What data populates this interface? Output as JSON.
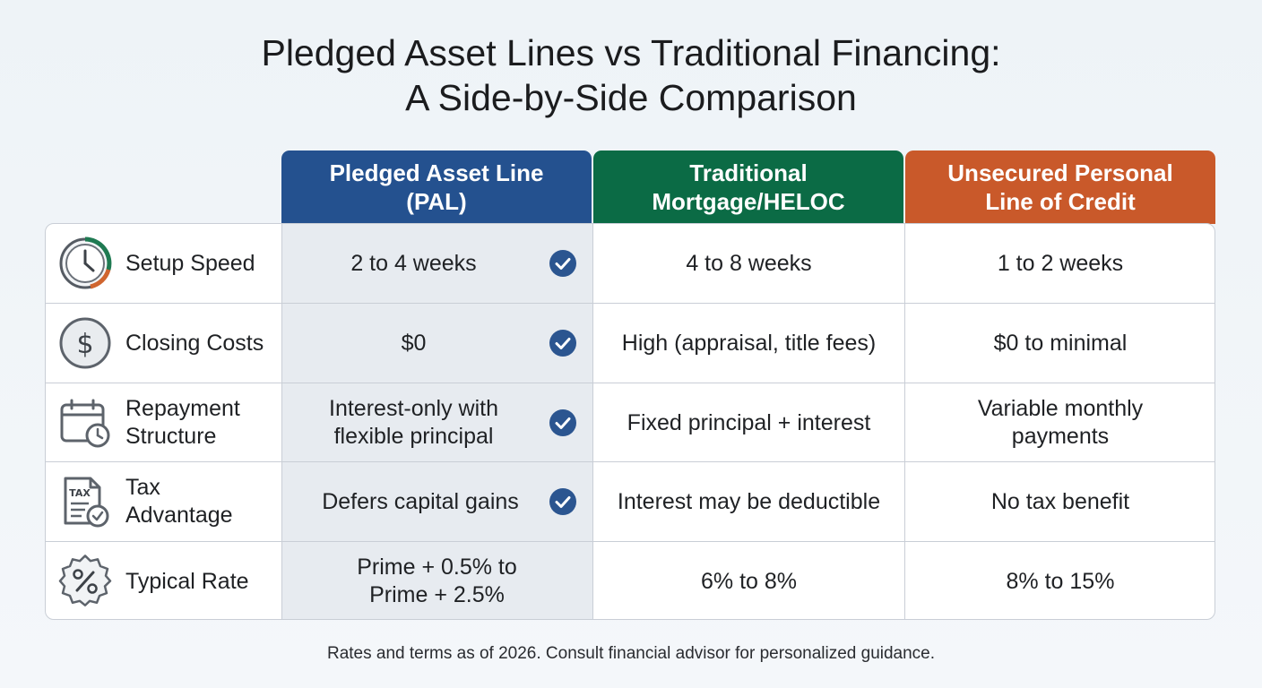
{
  "title": {
    "line1": "Pledged Asset Lines vs Traditional Financing:",
    "line2": "A Side-by-Side Comparison"
  },
  "columns": {
    "pal": {
      "line1": "Pledged Asset Line",
      "line2": "(PAL)"
    },
    "mortgage": {
      "line1": "Traditional",
      "line2": "Mortgage/HELOC"
    },
    "unsecured": {
      "line1": "Unsecured Personal",
      "line2": "Line of Credit"
    }
  },
  "rows": [
    {
      "icon": "clock-icon",
      "label": [
        "Setup Speed"
      ],
      "pal": [
        "2 to 4 weeks"
      ],
      "pal_check": true,
      "mortgage": [
        "4 to 8 weeks"
      ],
      "unsecured": [
        "1 to 2 weeks"
      ]
    },
    {
      "icon": "dollar-icon",
      "label": [
        "Closing Costs"
      ],
      "pal": [
        "$0"
      ],
      "pal_check": true,
      "mortgage": [
        "High (appraisal, title fees)"
      ],
      "unsecured": [
        "$0 to minimal"
      ]
    },
    {
      "icon": "calendar-clock-icon",
      "label": [
        "Repayment",
        "Structure"
      ],
      "pal": [
        "Interest-only with",
        "flexible principal"
      ],
      "pal_check": true,
      "mortgage": [
        "Fixed principal + interest"
      ],
      "unsecured": [
        "Variable monthly",
        "payments"
      ]
    },
    {
      "icon": "tax-document-icon",
      "label": [
        "Tax",
        "Advantage"
      ],
      "pal": [
        "Defers capital gains"
      ],
      "pal_check": true,
      "mortgage": [
        "Interest may be deductible"
      ],
      "unsecured": [
        "No tax benefit"
      ]
    },
    {
      "icon": "percent-badge-icon",
      "label": [
        "Typical Rate"
      ],
      "pal": [
        "Prime + 0.5% to",
        "Prime + 2.5%"
      ],
      "pal_check": false,
      "mortgage": [
        "6% to 8%"
      ],
      "unsecured": [
        "8% to 15%"
      ]
    }
  ],
  "footnote": "Rates and terms as of 2026. Consult financial advisor for personalized guidance.",
  "colors": {
    "pal_header": "#24518f",
    "mortgage_header": "#0b6b45",
    "unsecured_header": "#c9592a",
    "check": "#2b5590",
    "pal_column_bg": "#e7ebf0"
  }
}
